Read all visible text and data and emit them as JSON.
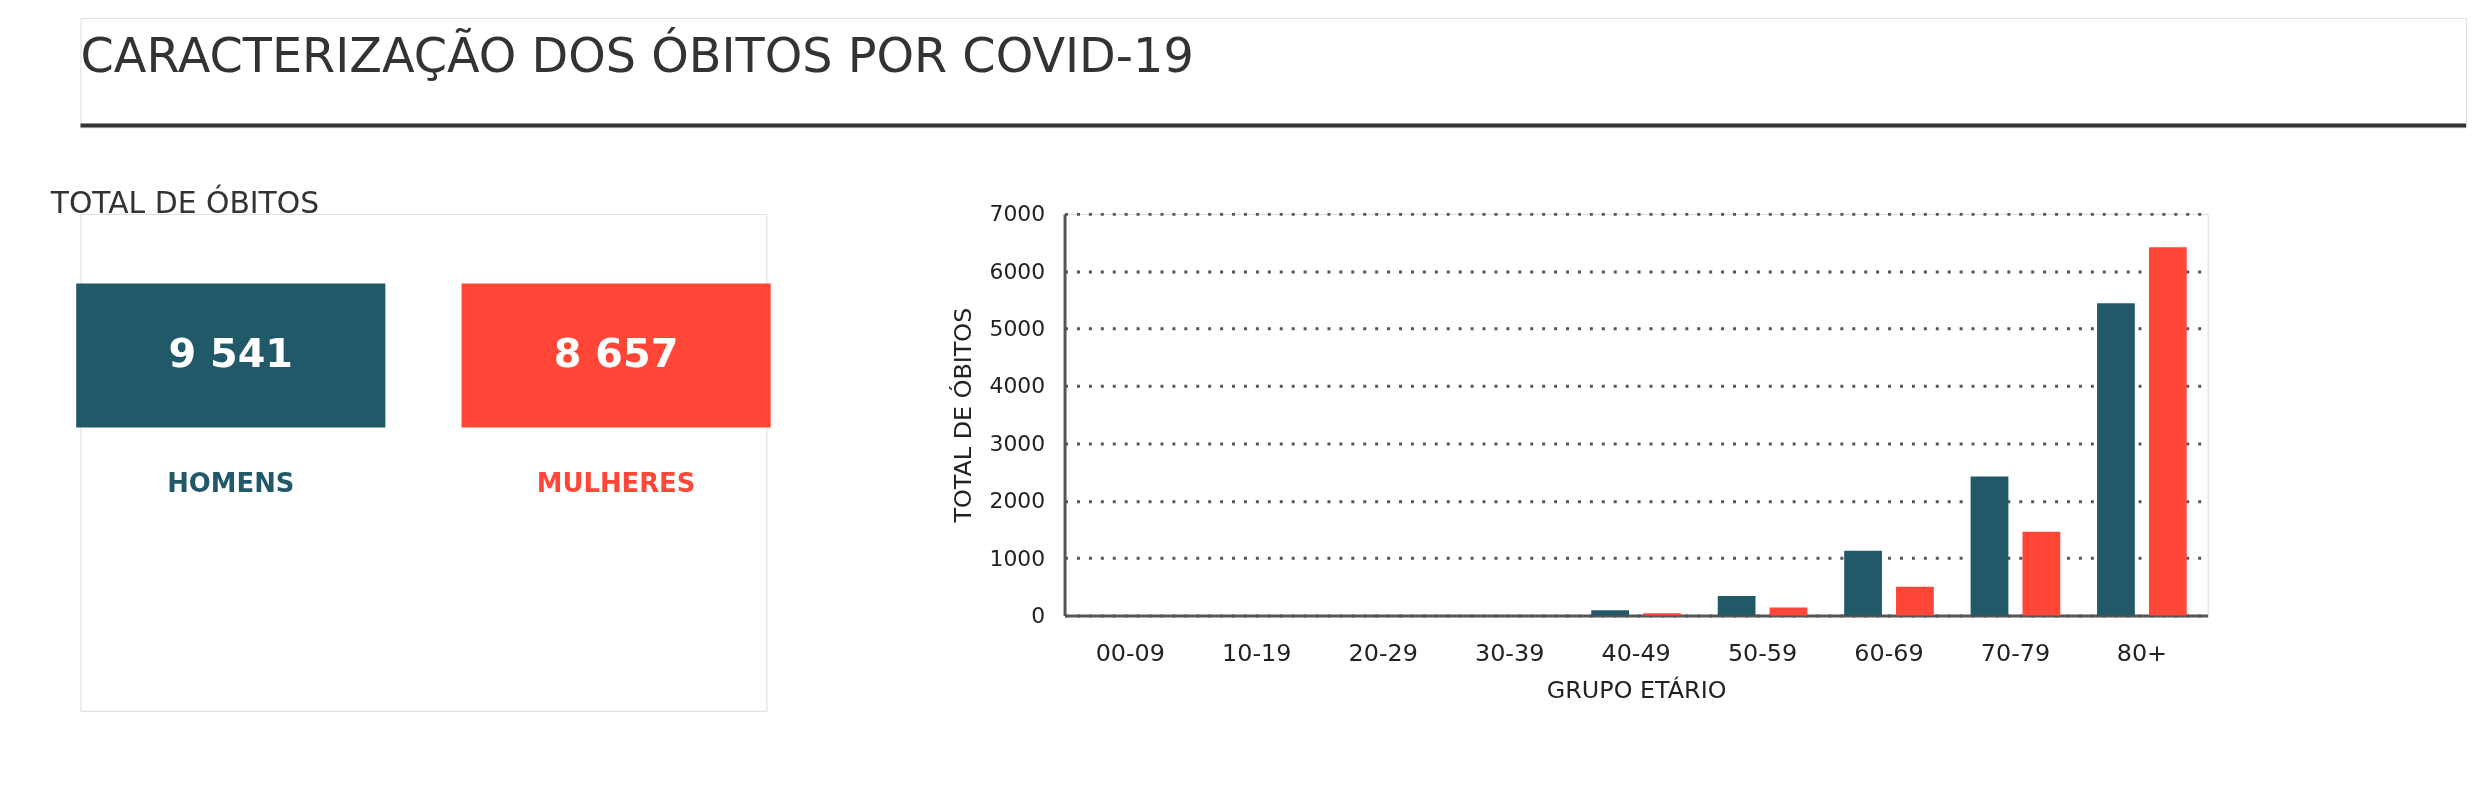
{
  "chart_data": [
    {
      "type": "other",
      "title": "CARACTERIZAÇÃO DOS ÓBITOS POR COVID-19",
      "subtitle": "TOTAL DE ÓBITOS",
      "categories": [
        "HOMENS",
        "MULHERES"
      ],
      "value_labels": [
        "9 541",
        "8 657"
      ],
      "colors": [
        "#215968",
        "#ff4637"
      ]
    },
    {
      "type": "bar",
      "xlabel": "GRUPO ETÁRIO",
      "ylabel": "TOTAL DE ÓBITOS",
      "categories": [
        "00-09",
        "10-19",
        "20-29",
        "30-39",
        "40-49",
        "50-59",
        "60-69",
        "70-79",
        "80+"
      ],
      "series": [
        {
          "color": "#215968",
          "values": [
            0,
            0,
            0,
            0,
            90,
            340,
            1130,
            2420,
            5440
          ]
        },
        {
          "color": "#ff4637",
          "values": [
            0,
            0,
            0,
            0,
            40,
            140,
            500,
            1460,
            6420
          ]
        }
      ],
      "ylim": [
        0,
        7000
      ],
      "yticks": [
        0,
        1000,
        2000,
        3000,
        4000,
        5000,
        6000,
        7000
      ],
      "grid": "y"
    }
  ]
}
